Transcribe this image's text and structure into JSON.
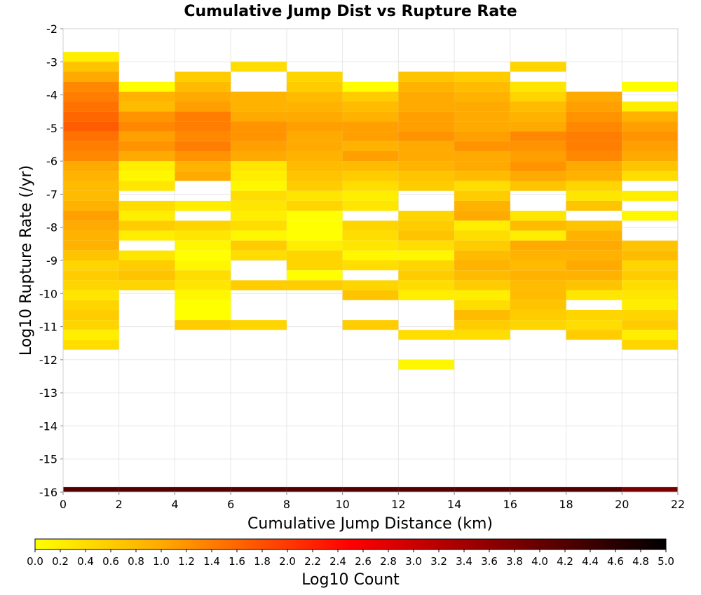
{
  "chart_data": {
    "type": "heatmap",
    "title": "Cumulative Jump Dist vs Rupture Rate",
    "xlabel": "Cumulative Jump Distance (km)",
    "ylabel": "Log10 Rupture Rate (/yr)",
    "xlim": [
      0,
      22
    ],
    "ylim": [
      -16,
      -2
    ],
    "x_ticks": [
      0,
      2,
      4,
      6,
      8,
      10,
      12,
      14,
      16,
      18,
      20,
      22
    ],
    "y_ticks": [
      -2,
      -3,
      -4,
      -5,
      -6,
      -7,
      -8,
      -9,
      -10,
      -11,
      -12,
      -13,
      -14,
      -15,
      -16
    ],
    "grid": true,
    "x_bin_width": 2,
    "y_bin_height": 0.3,
    "colorbar": {
      "label": "Log10 Count",
      "range": [
        0.0,
        5.0
      ],
      "ticks": [
        "0.0",
        "0.2",
        "0.4",
        "0.6",
        "0.8",
        "1.0",
        "1.2",
        "1.4",
        "1.6",
        "1.8",
        "2.0",
        "2.2",
        "2.4",
        "2.6",
        "2.8",
        "3.0",
        "3.2",
        "3.4",
        "3.6",
        "3.8",
        "4.0",
        "4.2",
        "4.4",
        "4.6",
        "4.8",
        "5.0"
      ],
      "colors": [
        "#ffff00",
        "#ffaa00",
        "#ff0000",
        "#000000"
      ],
      "color_stops": [
        0.0,
        1.0,
        2.5,
        5.0
      ]
    },
    "series": [
      {
        "x": 1,
        "cells": [
          [
            -2.85,
            0.2
          ],
          [
            -3.15,
            0.7
          ],
          [
            -3.45,
            1.0
          ],
          [
            -3.75,
            1.3
          ],
          [
            -4.05,
            1.4
          ],
          [
            -4.35,
            1.5
          ],
          [
            -4.65,
            1.6
          ],
          [
            -4.95,
            1.7
          ],
          [
            -5.25,
            1.5
          ],
          [
            -5.55,
            1.4
          ],
          [
            -5.85,
            1.3
          ],
          [
            -6.15,
            1.0
          ],
          [
            -6.45,
            0.9
          ],
          [
            -6.75,
            0.8
          ],
          [
            -7.05,
            0.8
          ],
          [
            -7.35,
            0.9
          ],
          [
            -7.65,
            1.1
          ],
          [
            -7.95,
            1.0
          ],
          [
            -8.25,
            0.9
          ],
          [
            -8.55,
            0.9
          ],
          [
            -8.85,
            0.7
          ],
          [
            -9.15,
            0.5
          ],
          [
            -9.45,
            0.6
          ],
          [
            -9.75,
            0.5
          ],
          [
            -10.05,
            0.3
          ],
          [
            -10.35,
            0.5
          ],
          [
            -10.65,
            0.6
          ],
          [
            -10.95,
            0.5
          ],
          [
            -11.25,
            0.2
          ],
          [
            -11.55,
            0.4
          ],
          [
            -16.0,
            4.2
          ]
        ]
      },
      {
        "x": 3,
        "cells": [
          [
            -3.75,
            0.0
          ],
          [
            -4.05,
            0.9
          ],
          [
            -4.35,
            0.8
          ],
          [
            -4.65,
            1.2
          ],
          [
            -4.95,
            1.3
          ],
          [
            -5.25,
            1.1
          ],
          [
            -5.55,
            1.2
          ],
          [
            -5.85,
            1.0
          ],
          [
            -6.15,
            0.2
          ],
          [
            -6.45,
            0.1
          ],
          [
            -6.75,
            0.3
          ],
          [
            -7.35,
            0.4
          ],
          [
            -7.65,
            0.2
          ],
          [
            -7.95,
            0.6
          ],
          [
            -8.25,
            0.2
          ],
          [
            -8.85,
            0.3
          ],
          [
            -9.15,
            0.6
          ],
          [
            -9.45,
            0.7
          ],
          [
            -9.75,
            0.5
          ],
          [
            -16.0,
            4.2
          ]
        ]
      },
      {
        "x": 5,
        "cells": [
          [
            -3.45,
            0.6
          ],
          [
            -3.75,
            0.8
          ],
          [
            -4.05,
            1.0
          ],
          [
            -4.35,
            1.1
          ],
          [
            -4.65,
            1.4
          ],
          [
            -4.95,
            1.4
          ],
          [
            -5.25,
            1.3
          ],
          [
            -5.55,
            1.4
          ],
          [
            -5.85,
            1.2
          ],
          [
            -6.15,
            0.9
          ],
          [
            -6.45,
            1.0
          ],
          [
            -7.35,
            0.2
          ],
          [
            -7.95,
            0.5
          ],
          [
            -8.25,
            0.3
          ],
          [
            -8.55,
            0.1
          ],
          [
            -8.85,
            0.0
          ],
          [
            -9.15,
            0.1
          ],
          [
            -9.45,
            0.4
          ],
          [
            -9.75,
            0.3
          ],
          [
            -10.05,
            0.1
          ],
          [
            -10.35,
            0.0
          ],
          [
            -10.65,
            0.0
          ],
          [
            -10.95,
            0.6
          ],
          [
            -16.0,
            4.2
          ]
        ]
      },
      {
        "x": 7,
        "cells": [
          [
            -3.15,
            0.4
          ],
          [
            -4.05,
            0.9
          ],
          [
            -4.35,
            0.9
          ],
          [
            -4.65,
            1.0
          ],
          [
            -4.95,
            1.2
          ],
          [
            -5.25,
            1.2
          ],
          [
            -5.55,
            1.1
          ],
          [
            -5.85,
            1.0
          ],
          [
            -6.15,
            0.3
          ],
          [
            -6.45,
            0.2
          ],
          [
            -6.75,
            0.1
          ],
          [
            -7.05,
            0.4
          ],
          [
            -7.35,
            0.3
          ],
          [
            -7.65,
            0.2
          ],
          [
            -7.95,
            0.4
          ],
          [
            -8.25,
            0.1
          ],
          [
            -8.55,
            0.6
          ],
          [
            -8.85,
            0.4
          ],
          [
            -9.75,
            0.6
          ],
          [
            -10.95,
            0.5
          ],
          [
            -16.0,
            4.2
          ]
        ]
      },
      {
        "x": 9,
        "cells": [
          [
            -3.45,
            0.5
          ],
          [
            -3.75,
            0.6
          ],
          [
            -4.05,
            0.8
          ],
          [
            -4.35,
            0.9
          ],
          [
            -4.65,
            1.0
          ],
          [
            -4.95,
            1.1
          ],
          [
            -5.25,
            1.0
          ],
          [
            -5.55,
            1.0
          ],
          [
            -5.85,
            0.9
          ],
          [
            -6.15,
            0.8
          ],
          [
            -6.45,
            0.7
          ],
          [
            -6.75,
            0.6
          ],
          [
            -7.05,
            0.3
          ],
          [
            -7.35,
            0.5
          ],
          [
            -7.65,
            0.0
          ],
          [
            -7.95,
            0.0
          ],
          [
            -8.25,
            0.0
          ],
          [
            -8.55,
            0.2
          ],
          [
            -8.85,
            0.5
          ],
          [
            -9.15,
            0.5
          ],
          [
            -9.45,
            0.0
          ],
          [
            -9.75,
            0.6
          ],
          [
            -16.0,
            4.2
          ]
        ]
      },
      {
        "x": 11,
        "cells": [
          [
            -3.75,
            0.0
          ],
          [
            -4.05,
            0.6
          ],
          [
            -4.35,
            0.8
          ],
          [
            -4.65,
            0.9
          ],
          [
            -4.95,
            1.1
          ],
          [
            -5.25,
            1.1
          ],
          [
            -5.55,
            0.9
          ],
          [
            -5.85,
            1.1
          ],
          [
            -6.15,
            0.8
          ],
          [
            -6.45,
            0.6
          ],
          [
            -6.75,
            0.4
          ],
          [
            -7.05,
            0.2
          ],
          [
            -7.35,
            0.3
          ],
          [
            -7.95,
            0.5
          ],
          [
            -8.25,
            0.4
          ],
          [
            -8.55,
            0.3
          ],
          [
            -8.85,
            0.1
          ],
          [
            -9.15,
            0.4
          ],
          [
            -9.75,
            0.5
          ],
          [
            -10.05,
            0.7
          ],
          [
            -10.95,
            0.6
          ],
          [
            -16.0,
            4.2
          ]
        ]
      },
      {
        "x": 13,
        "cells": [
          [
            -3.45,
            0.7
          ],
          [
            -3.75,
            0.9
          ],
          [
            -4.05,
            1.0
          ],
          [
            -4.35,
            1.0
          ],
          [
            -4.65,
            1.1
          ],
          [
            -4.95,
            1.1
          ],
          [
            -5.25,
            1.2
          ],
          [
            -5.55,
            1.0
          ],
          [
            -5.85,
            1.0
          ],
          [
            -6.15,
            0.9
          ],
          [
            -6.45,
            0.7
          ],
          [
            -6.75,
            0.6
          ],
          [
            -7.65,
            0.5
          ],
          [
            -7.95,
            0.6
          ],
          [
            -8.25,
            0.7
          ],
          [
            -8.55,
            0.4
          ],
          [
            -8.85,
            0.1
          ],
          [
            -9.15,
            0.5
          ],
          [
            -9.45,
            0.6
          ],
          [
            -9.75,
            0.4
          ],
          [
            -10.05,
            0.2
          ],
          [
            -11.25,
            0.4
          ],
          [
            -12.15,
            0.1
          ],
          [
            -16.0,
            4.2
          ]
        ]
      },
      {
        "x": 15,
        "cells": [
          [
            -3.45,
            0.6
          ],
          [
            -3.75,
            0.8
          ],
          [
            -4.05,
            0.9
          ],
          [
            -4.35,
            1.0
          ],
          [
            -4.65,
            1.0
          ],
          [
            -4.95,
            1.0
          ],
          [
            -5.25,
            1.1
          ],
          [
            -5.55,
            1.2
          ],
          [
            -5.85,
            1.0
          ],
          [
            -6.15,
            1.0
          ],
          [
            -6.45,
            0.8
          ],
          [
            -6.75,
            0.4
          ],
          [
            -7.05,
            0.6
          ],
          [
            -7.35,
            0.9
          ],
          [
            -7.65,
            1.0
          ],
          [
            -7.95,
            0.2
          ],
          [
            -8.25,
            0.4
          ],
          [
            -8.55,
            0.6
          ],
          [
            -8.85,
            0.8
          ],
          [
            -9.15,
            0.9
          ],
          [
            -9.45,
            0.8
          ],
          [
            -9.75,
            0.6
          ],
          [
            -10.05,
            0.2
          ],
          [
            -10.35,
            0.4
          ],
          [
            -10.65,
            0.8
          ],
          [
            -10.95,
            0.6
          ],
          [
            -11.25,
            0.4
          ],
          [
            -16.0,
            4.2
          ]
        ]
      },
      {
        "x": 17,
        "cells": [
          [
            -3.15,
            0.5
          ],
          [
            -3.75,
            0.3
          ],
          [
            -4.05,
            0.5
          ],
          [
            -4.35,
            0.8
          ],
          [
            -4.65,
            0.9
          ],
          [
            -4.95,
            1.0
          ],
          [
            -5.25,
            1.3
          ],
          [
            -5.55,
            1.2
          ],
          [
            -5.85,
            1.1
          ],
          [
            -6.15,
            1.2
          ],
          [
            -6.45,
            1.0
          ],
          [
            -6.75,
            0.7
          ],
          [
            -7.65,
            0.3
          ],
          [
            -7.95,
            0.8
          ],
          [
            -8.25,
            0.2
          ],
          [
            -8.55,
            1.0
          ],
          [
            -8.85,
            0.9
          ],
          [
            -9.15,
            0.8
          ],
          [
            -9.45,
            0.9
          ],
          [
            -9.75,
            0.8
          ],
          [
            -10.05,
            0.8
          ],
          [
            -10.35,
            0.7
          ],
          [
            -10.65,
            0.6
          ],
          [
            -10.95,
            0.5
          ],
          [
            -16.0,
            4.2
          ]
        ]
      },
      {
        "x": 19,
        "cells": [
          [
            -4.05,
            1.0
          ],
          [
            -4.35,
            1.1
          ],
          [
            -4.65,
            1.2
          ],
          [
            -4.95,
            1.3
          ],
          [
            -5.25,
            1.4
          ],
          [
            -5.55,
            1.4
          ],
          [
            -5.85,
            1.3
          ],
          [
            -6.15,
            1.0
          ],
          [
            -6.45,
            0.9
          ],
          [
            -6.75,
            0.5
          ],
          [
            -7.05,
            0.3
          ],
          [
            -7.35,
            0.7
          ],
          [
            -7.95,
            0.7
          ],
          [
            -8.25,
            0.9
          ],
          [
            -8.55,
            1.0
          ],
          [
            -8.85,
            0.9
          ],
          [
            -9.15,
            1.0
          ],
          [
            -9.45,
            0.9
          ],
          [
            -9.75,
            0.7
          ],
          [
            -10.05,
            0.3
          ],
          [
            -10.65,
            0.5
          ],
          [
            -10.95,
            0.4
          ],
          [
            -11.25,
            0.6
          ],
          [
            -16.0,
            4.2
          ]
        ]
      },
      {
        "x": 21,
        "cells": [
          [
            -3.75,
            0.0
          ],
          [
            -4.35,
            0.2
          ],
          [
            -4.65,
            0.9
          ],
          [
            -4.95,
            1.1
          ],
          [
            -5.25,
            1.2
          ],
          [
            -5.55,
            1.1
          ],
          [
            -5.85,
            1.0
          ],
          [
            -6.15,
            0.7
          ],
          [
            -6.45,
            0.4
          ],
          [
            -7.05,
            0.2
          ],
          [
            -7.65,
            0.1
          ],
          [
            -8.55,
            0.7
          ],
          [
            -8.85,
            0.8
          ],
          [
            -9.15,
            0.5
          ],
          [
            -9.45,
            0.6
          ],
          [
            -9.75,
            0.4
          ],
          [
            -10.05,
            0.3
          ],
          [
            -10.35,
            0.2
          ],
          [
            -10.65,
            0.5
          ],
          [
            -10.95,
            0.6
          ],
          [
            -11.25,
            0.2
          ],
          [
            -11.55,
            0.5
          ],
          [
            -16.0,
            3.8
          ]
        ]
      }
    ]
  }
}
